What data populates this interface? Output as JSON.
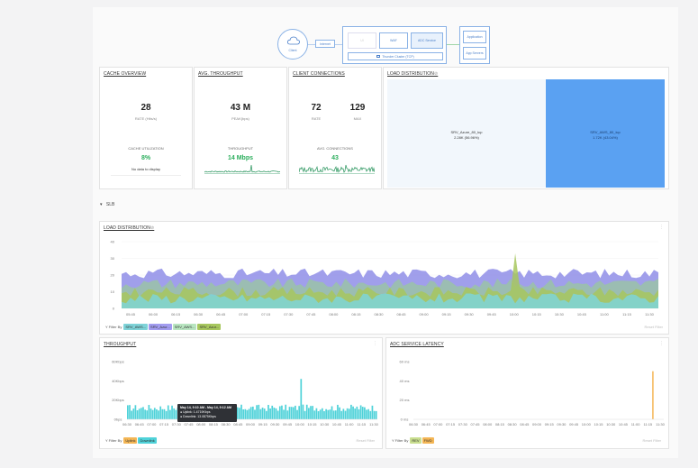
{
  "topology": {
    "client": "Client",
    "internet": "Internet",
    "faded": "UI",
    "waf": "WAF",
    "adc_service": "ADC Service",
    "thunder_cluster": "Thunder Cluster (TCP)",
    "application": "Application",
    "app_servers": "App Servers"
  },
  "cache": {
    "title": "CACHE OVERVIEW",
    "rate_value": "28",
    "rate_label": "RATE (Hits/s)",
    "util_label": "CACHE UTILIZATION",
    "util_value": "8%",
    "nodata": "No data to display"
  },
  "avg_throughput": {
    "title": "AVG. THROUGHPUT",
    "value": "43 M",
    "sub": "PEAK(bps)",
    "tp_label": "THROUGHPUT",
    "tp_value": "14 Mbps"
  },
  "client_conn": {
    "title": "CLIENT CONNECTIONS",
    "rate_value": "72",
    "rate_label": "RATE",
    "max_value": "129",
    "max_label": "MAX",
    "avg_label": "AVG. CONNECTIONS",
    "avg_value": "43"
  },
  "load_dist": {
    "title": "LOAD DISTRIBUTION",
    "blocks": [
      {
        "name": "SRV_Azure_80_tcp",
        "detail": "2.28K (56.96%)",
        "share": 0.5696,
        "color": "#f2f7fc"
      },
      {
        "name": "SRV_AWS_80_tcp",
        "detail": "1.72K (43.04%)",
        "share": 0.4304,
        "color": "#5aa1f2"
      }
    ]
  },
  "slb": {
    "toggle": "▾",
    "label": "SLB"
  },
  "load_chart": {
    "title": "LOAD DISTRIBUTION",
    "filter_label": "Filter By",
    "reset": "Reset Filter",
    "chips": [
      {
        "label": "SRV_AWS...",
        "color": "#7ed3d8"
      },
      {
        "label": "SRV_Azur...",
        "color": "#a29cf0"
      },
      {
        "label": "SRV_AWS...",
        "color": "#b8e5c0"
      },
      {
        "label": "SRV_Azur...",
        "color": "#a7c75e"
      }
    ]
  },
  "chart_data": [
    {
      "type": "area",
      "title": "LOAD DISTRIBUTION",
      "x": [
        "05:45",
        "06:00",
        "06:15",
        "06:30",
        "06:45",
        "07:00",
        "07:15",
        "07:30",
        "07:45",
        "08:00",
        "08:15",
        "08:30",
        "08:45",
        "09:00",
        "09:15",
        "09:30",
        "09:45",
        "10:00",
        "10:15",
        "10:30",
        "10:45",
        "11:00",
        "11:15",
        "11:30"
      ],
      "ylim": [
        0,
        40
      ],
      "yticks": [
        0,
        10,
        20,
        30,
        40
      ],
      "series": [
        {
          "name": "SRV_Azur...",
          "color": "#8f8ee8",
          "level": 21
        },
        {
          "name": "SRV_AWS...",
          "color": "#9ac2a8",
          "level": 15
        },
        {
          "name": "SRV_Azur...",
          "color": "#a7c75e",
          "level": 10
        },
        {
          "name": "SRV_AWS...",
          "color": "#7ed3d8",
          "level": 6
        }
      ],
      "spike": {
        "x": "09:55",
        "value": 33
      }
    },
    {
      "type": "bar",
      "title": "THROUGHPUT",
      "x": [
        "06:30",
        "06:45",
        "07:00",
        "07:15",
        "07:30",
        "07:45",
        "08:00",
        "08:15",
        "08:30",
        "08:45",
        "09:00",
        "09:15",
        "09:30",
        "09:45",
        "10:00",
        "10:15",
        "10:30",
        "10:45",
        "11:00",
        "11:15",
        "11:30"
      ],
      "ylim": [
        0,
        60
      ],
      "yticks": [
        "0bps",
        "20Kbps",
        "40Kbps",
        "60Kbps"
      ],
      "series": [
        {
          "name": "Uplink",
          "color": "#f4b655"
        },
        {
          "name": "Downlink",
          "color": "#4fd2d9"
        }
      ],
      "typical": 14,
      "spike": {
        "x": "09:55",
        "value": 42
      }
    },
    {
      "type": "bar",
      "title": "ADC SERVICE LATENCY",
      "x": [
        "06:30",
        "06:45",
        "07:00",
        "07:15",
        "07:30",
        "07:45",
        "08:00",
        "08:15",
        "08:30",
        "08:45",
        "09:00",
        "09:15",
        "09:30",
        "09:45",
        "10:00",
        "10:15",
        "10:30",
        "10:45",
        "11:00",
        "11:15",
        "11:30"
      ],
      "ylim": [
        0,
        60
      ],
      "yticks": [
        "0 ms",
        "20 ms",
        "40 ms",
        "60 ms"
      ],
      "series": [
        {
          "name": "REV",
          "color": "#a7c75e"
        },
        {
          "name": "FWD",
          "color": "#f4b655"
        }
      ],
      "spike": {
        "x": "11:20",
        "value": 50
      }
    }
  ],
  "throughput": {
    "title": "THROUGHPUT",
    "filter_label": "Filter By",
    "reset": "Reset Filter",
    "chips": [
      {
        "label": "Uplink",
        "color": "#f4b655"
      },
      {
        "label": "Downlink",
        "color": "#4fd2d9"
      }
    ],
    "tooltip": {
      "line1": "May 14, 9:10 AM - May 14, 9:12 AM",
      "line2": "● Uplink: 1.4719Kbps",
      "line3": "● Downlink: 13.0875Kbps"
    }
  },
  "latency": {
    "title": "ADC SERVICE LATENCY",
    "filter_label": "Filter By",
    "reset": "Reset Filter",
    "chips": [
      {
        "label": "REV",
        "color": "#c9de8f"
      },
      {
        "label": "FWD",
        "color": "#f4b655"
      }
    ]
  }
}
